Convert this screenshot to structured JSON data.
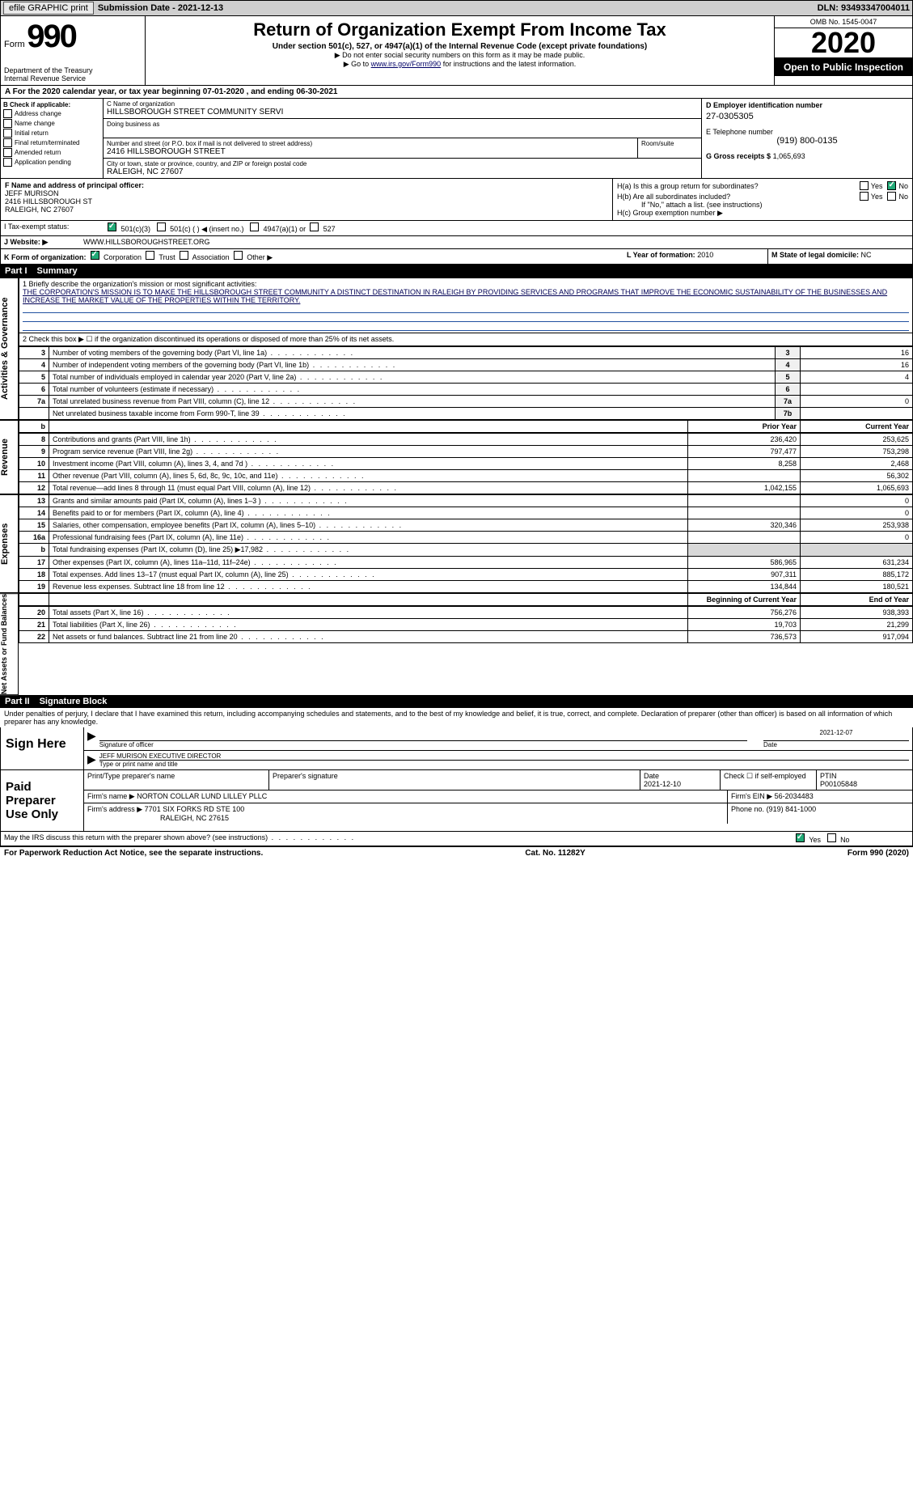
{
  "toolbar": {
    "efile": "efile GRAPHIC print",
    "submission_label": "Submission Date - 2021-12-13",
    "dln": "DLN: 93493347004011"
  },
  "header": {
    "form_word": "Form",
    "form_number": "990",
    "dept": "Department of the Treasury",
    "irs": "Internal Revenue Service",
    "title": "Return of Organization Exempt From Income Tax",
    "subtitle": "Under section 501(c), 527, or 4947(a)(1) of the Internal Revenue Code (except private foundations)",
    "instr1": "▶ Do not enter social security numbers on this form as it may be made public.",
    "instr2_pre": "▶ Go to ",
    "instr2_link": "www.irs.gov/Form990",
    "instr2_post": " for instructions and the latest information.",
    "omb": "OMB No. 1545-0047",
    "year": "2020",
    "open_pub": "Open to Public Inspection"
  },
  "period": {
    "line": "A For the 2020 calendar year, or tax year beginning 07-01-2020   , and ending 06-30-2021"
  },
  "sectionB": {
    "title": "B Check if applicable:",
    "opts": [
      "Address change",
      "Name change",
      "Initial return",
      "Final return/terminated",
      "Amended return",
      "Application pending"
    ]
  },
  "sectionC": {
    "name_label": "C Name of organization",
    "name": "HILLSBOROUGH STREET COMMUNITY SERVI",
    "dba_label": "Doing business as",
    "addr_label": "Number and street (or P.O. box if mail is not delivered to street address)",
    "room_label": "Room/suite",
    "addr": "2416 HILLSBOROUGH STREET",
    "city_label": "City or town, state or province, country, and ZIP or foreign postal code",
    "city": "RALEIGH, NC  27607"
  },
  "sectionD": {
    "label": "D Employer identification number",
    "value": "27-0305305"
  },
  "sectionE": {
    "label": "E Telephone number",
    "value": "(919) 800-0135"
  },
  "sectionG": {
    "label": "G Gross receipts $",
    "value": "1,065,693"
  },
  "sectionF": {
    "label": "F  Name and address of principal officer:",
    "name": "JEFF MURISON",
    "addr1": "2416 HILLSBOROUGH ST",
    "addr2": "RALEIGH, NC  27607"
  },
  "sectionH": {
    "a": "H(a)  Is this a group return for subordinates?",
    "b": "H(b)  Are all subordinates included?",
    "b_note": "If \"No,\" attach a list. (see instructions)",
    "c": "H(c)  Group exemption number ▶",
    "yes": "Yes",
    "no": "No"
  },
  "sectionI": {
    "label": "I   Tax-exempt status:",
    "o1": "501(c)(3)",
    "o2": "501(c) (   ) ◀ (insert no.)",
    "o3": "4947(a)(1) or",
    "o4": "527"
  },
  "sectionJ": {
    "label": "J  Website: ▶",
    "value": "WWW.HILLSBOROUGHSTREET.ORG"
  },
  "sectionK": {
    "label": "K Form of organization:",
    "opts": [
      "Corporation",
      "Trust",
      "Association",
      "Other ▶"
    ]
  },
  "sectionL": {
    "label": "L Year of formation:",
    "value": "2010"
  },
  "sectionM": {
    "label": "M State of legal domicile:",
    "value": "NC"
  },
  "part1": {
    "num": "Part I",
    "title": "Summary",
    "q1_label": "1  Briefly describe the organization's mission or most significant activities:",
    "q1_text": "THE CORPORATION'S MISSION IS TO MAKE THE HILLSBOROUGH STREET COMMUNITY A DISTINCT DESTINATION IN RALEIGH BY PROVIDING SERVICES AND PROGRAMS THAT IMPROVE THE ECONOMIC SUSTAINABILITY OF THE BUSINESSES AND INCREASE THE MARKET VALUE OF THE PROPERTIES WITHIN THE TERRITORY.",
    "q2": "2   Check this box ▶ ☐  if the organization discontinued its operations or disposed of more than 25% of its net assets.",
    "rows_ag": [
      {
        "n": "3",
        "t": "Number of voting members of the governing body (Part VI, line 1a)",
        "box": "3",
        "v": "16"
      },
      {
        "n": "4",
        "t": "Number of independent voting members of the governing body (Part VI, line 1b)",
        "box": "4",
        "v": "16"
      },
      {
        "n": "5",
        "t": "Total number of individuals employed in calendar year 2020 (Part V, line 2a)",
        "box": "5",
        "v": "4"
      },
      {
        "n": "6",
        "t": "Total number of volunteers (estimate if necessary)",
        "box": "6",
        "v": ""
      },
      {
        "n": "7a",
        "t": "Total unrelated business revenue from Part VIII, column (C), line 12",
        "box": "7a",
        "v": "0"
      },
      {
        "n": "",
        "t": "Net unrelated business taxable income from Form 990-T, line 39",
        "box": "7b",
        "v": ""
      }
    ],
    "col_prior": "Prior Year",
    "col_current": "Current Year",
    "rev_rows": [
      {
        "n": "8",
        "t": "Contributions and grants (Part VIII, line 1h)",
        "p": "236,420",
        "c": "253,625"
      },
      {
        "n": "9",
        "t": "Program service revenue (Part VIII, line 2g)",
        "p": "797,477",
        "c": "753,298"
      },
      {
        "n": "10",
        "t": "Investment income (Part VIII, column (A), lines 3, 4, and 7d )",
        "p": "8,258",
        "c": "2,468"
      },
      {
        "n": "11",
        "t": "Other revenue (Part VIII, column (A), lines 5, 6d, 8c, 9c, 10c, and 11e)",
        "p": "",
        "c": "56,302"
      },
      {
        "n": "12",
        "t": "Total revenue—add lines 8 through 11 (must equal Part VIII, column (A), line 12)",
        "p": "1,042,155",
        "c": "1,065,693"
      }
    ],
    "exp_rows": [
      {
        "n": "13",
        "t": "Grants and similar amounts paid (Part IX, column (A), lines 1–3 )",
        "p": "",
        "c": "0"
      },
      {
        "n": "14",
        "t": "Benefits paid to or for members (Part IX, column (A), line 4)",
        "p": "",
        "c": "0"
      },
      {
        "n": "15",
        "t": "Salaries, other compensation, employee benefits (Part IX, column (A), lines 5–10)",
        "p": "320,346",
        "c": "253,938"
      },
      {
        "n": "16a",
        "t": "Professional fundraising fees (Part IX, column (A), line 11e)",
        "p": "",
        "c": "0"
      },
      {
        "n": "b",
        "t": "Total fundraising expenses (Part IX, column (D), line 25) ▶17,982",
        "p": "",
        "c": "",
        "shade": true
      },
      {
        "n": "17",
        "t": "Other expenses (Part IX, column (A), lines 11a–11d, 11f–24e)",
        "p": "586,965",
        "c": "631,234"
      },
      {
        "n": "18",
        "t": "Total expenses. Add lines 13–17 (must equal Part IX, column (A), line 25)",
        "p": "907,311",
        "c": "885,172"
      },
      {
        "n": "19",
        "t": "Revenue less expenses. Subtract line 18 from line 12",
        "p": "134,844",
        "c": "180,521"
      }
    ],
    "col_begin": "Beginning of Current Year",
    "col_end": "End of Year",
    "na_rows": [
      {
        "n": "20",
        "t": "Total assets (Part X, line 16)",
        "p": "756,276",
        "c": "938,393"
      },
      {
        "n": "21",
        "t": "Total liabilities (Part X, line 26)",
        "p": "19,703",
        "c": "21,299"
      },
      {
        "n": "22",
        "t": "Net assets or fund balances. Subtract line 21 from line 20",
        "p": "736,573",
        "c": "917,094"
      }
    ],
    "side_ag": "Activities & Governance",
    "side_rev": "Revenue",
    "side_exp": "Expenses",
    "side_na": "Net Assets or Fund Balances",
    "b_head": "b"
  },
  "part2": {
    "num": "Part II",
    "title": "Signature Block",
    "penalties": "Under penalties of perjury, I declare that I have examined this return, including accompanying schedules and statements, and to the best of my knowledge and belief, it is true, correct, and complete. Declaration of preparer (other than officer) is based on all information of which preparer has any knowledge.",
    "sign_here": "Sign Here",
    "sig_officer": "Signature of officer",
    "sig_date": "2021-12-07",
    "date_lbl": "Date",
    "officer_name": "JEFF MURISON  EXECUTIVE DIRECTOR",
    "type_name": "Type or print name and title",
    "paid": "Paid Preparer Use Only",
    "prep_name_lbl": "Print/Type preparer's name",
    "prep_sig_lbl": "Preparer's signature",
    "prep_date_lbl": "Date",
    "prep_date": "2021-12-10",
    "self_emp": "Check ☐ if self-employed",
    "ptin_lbl": "PTIN",
    "ptin": "P00105848",
    "firm_name_lbl": "Firm's name    ▶",
    "firm_name": "NORTON COLLAR LUND LILLEY PLLC",
    "firm_ein_lbl": "Firm's EIN ▶",
    "firm_ein": "56-2034483",
    "firm_addr_lbl": "Firm's address ▶",
    "firm_addr1": "7701 SIX FORKS RD STE 100",
    "firm_addr2": "RALEIGH, NC  27615",
    "phone_lbl": "Phone no.",
    "phone": "(919) 841-1000",
    "discuss": "May the IRS discuss this return with the preparer shown above? (see instructions)",
    "yes": "Yes",
    "no": "No"
  },
  "footer": {
    "pra": "For Paperwork Reduction Act Notice, see the separate instructions.",
    "cat": "Cat. No. 11282Y",
    "form": "Form 990 (2020)"
  },
  "colors": {
    "toolbar_bg": "#cfcfcf",
    "check_green": "#22aa77",
    "link_blue": "#003399",
    "rule_blue": "#2050a0"
  }
}
